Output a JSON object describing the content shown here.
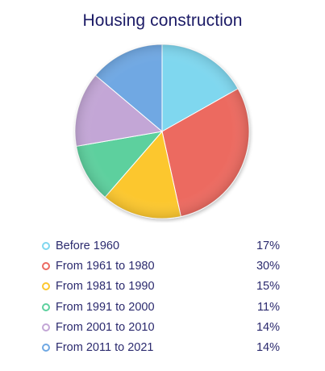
{
  "chart_data": {
    "type": "pie",
    "title": "Housing construction",
    "categories": [
      "Before 1960",
      "From 1961 to 1980",
      "From 1981 to 1990",
      "From 1991 to 2000",
      "From 2001 to 2010",
      "From 2011 to 2021"
    ],
    "values": [
      17,
      30,
      15,
      11,
      14,
      14
    ],
    "value_labels": [
      "17%",
      "30%",
      "15%",
      "11%",
      "14%",
      "14%"
    ],
    "colors": [
      "#7fd7ef",
      "#ec6a61",
      "#fcc72f",
      "#5dd09e",
      "#c3a6d6",
      "#6fa8e3"
    ],
    "start": "top, clockwise",
    "legend": "bottom"
  }
}
